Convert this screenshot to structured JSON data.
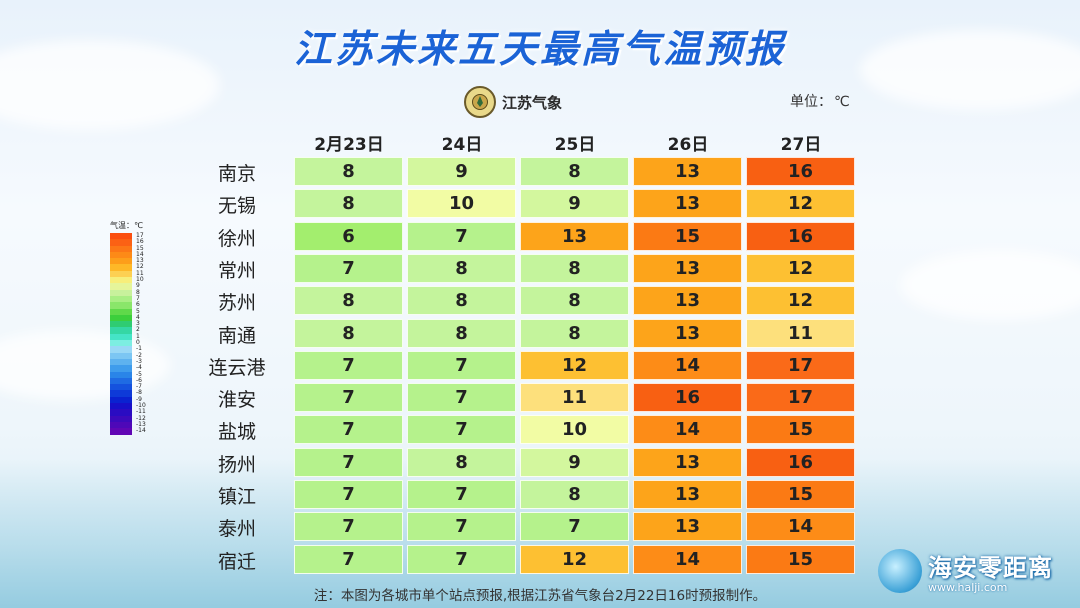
{
  "title": "江苏未来五天最高气温预报",
  "logo": {
    "text": "江苏气象",
    "icon": "jiangsu-meteorology-emblem-icon"
  },
  "unit": {
    "label": "单位：",
    "symbol": "℃"
  },
  "dates": [
    "2月23日",
    "24日",
    "25日",
    "26日",
    "27日"
  ],
  "rows": [
    {
      "city": "南京",
      "temps": [
        "8",
        "9",
        "8",
        "13",
        "16"
      ]
    },
    {
      "city": "无锡",
      "temps": [
        "8",
        "10",
        "9",
        "13",
        "12"
      ]
    },
    {
      "city": "徐州",
      "temps": [
        "6",
        "7",
        "13",
        "15",
        "16"
      ]
    },
    {
      "city": "常州",
      "temps": [
        "7",
        "8",
        "8",
        "13",
        "12"
      ]
    },
    {
      "city": "苏州",
      "temps": [
        "8",
        "8",
        "8",
        "13",
        "12"
      ]
    },
    {
      "city": "南通",
      "temps": [
        "8",
        "8",
        "8",
        "13",
        "11"
      ]
    },
    {
      "city": "连云港",
      "temps": [
        "7",
        "7",
        "12",
        "14",
        "17"
      ]
    },
    {
      "city": "淮安",
      "temps": [
        "7",
        "7",
        "11",
        "16",
        "17"
      ]
    },
    {
      "city": "盐城",
      "temps": [
        "7",
        "7",
        "10",
        "14",
        "15"
      ]
    },
    {
      "city": "扬州",
      "temps": [
        "7",
        "8",
        "9",
        "13",
        "16"
      ]
    },
    {
      "city": "镇江",
      "temps": [
        "7",
        "7",
        "8",
        "13",
        "15"
      ]
    },
    {
      "city": "泰州",
      "temps": [
        "7",
        "7",
        "7",
        "13",
        "14"
      ]
    },
    {
      "city": "宿迁",
      "temps": [
        "7",
        "7",
        "12",
        "14",
        "15"
      ]
    }
  ],
  "colors": {
    "6": "#a3ee6e",
    "7": "#b5f28c",
    "8": "#c4f49c",
    "9": "#d3f79e",
    "10": "#f2fca4",
    "11": "#fde07c",
    "12": "#fdc032",
    "13": "#fda41a",
    "14": "#fd8c17",
    "15": "#fb7a14",
    "16": "#f86012",
    "17": "#fa6a18"
  },
  "legend": {
    "title": "气温：℃",
    "items": [
      {
        "label": "17",
        "color": "#fb4f10"
      },
      {
        "label": "16",
        "color": "#fb6114"
      },
      {
        "label": "15",
        "color": "#fc7716"
      },
      {
        "label": "14",
        "color": "#fd8a17"
      },
      {
        "label": "13",
        "color": "#fd9e1a"
      },
      {
        "label": "12",
        "color": "#feb827"
      },
      {
        "label": "11",
        "color": "#fdd052"
      },
      {
        "label": "10",
        "color": "#f7ee7a"
      },
      {
        "label": "9",
        "color": "#e5f59a"
      },
      {
        "label": "8",
        "color": "#c8f19c"
      },
      {
        "label": "7",
        "color": "#a9ee84"
      },
      {
        "label": "6",
        "color": "#8ae66a"
      },
      {
        "label": "5",
        "color": "#5fd94a"
      },
      {
        "label": "4",
        "color": "#3ccf3c"
      },
      {
        "label": "3",
        "color": "#2fcc72"
      },
      {
        "label": "2",
        "color": "#35d7a4"
      },
      {
        "label": "1",
        "color": "#45e4c6"
      },
      {
        "label": "0",
        "color": "#7deee2"
      },
      {
        "label": "-1",
        "color": "#9ad8f6"
      },
      {
        "label": "-2",
        "color": "#7cc6f3"
      },
      {
        "label": "-3",
        "color": "#5eb2ef"
      },
      {
        "label": "-4",
        "color": "#3f9cec"
      },
      {
        "label": "-5",
        "color": "#2a85e8"
      },
      {
        "label": "-6",
        "color": "#1f6be3"
      },
      {
        "label": "-7",
        "color": "#1552de"
      },
      {
        "label": "-8",
        "color": "#0e3ad8"
      },
      {
        "label": "-9",
        "color": "#0a22d0"
      },
      {
        "label": "-10",
        "color": "#1710c8"
      },
      {
        "label": "-11",
        "color": "#2a0cc2"
      },
      {
        "label": "-12",
        "color": "#3c0abc"
      },
      {
        "label": "-13",
        "color": "#4e08b8"
      },
      {
        "label": "-14",
        "color": "#6006b4"
      }
    ]
  },
  "note": "注：本图为各城市单个站点预报,根据江苏省气象台2月22日16时预报制作。",
  "watermark": {
    "text": "海安零距离",
    "url": "www.halji.com"
  }
}
